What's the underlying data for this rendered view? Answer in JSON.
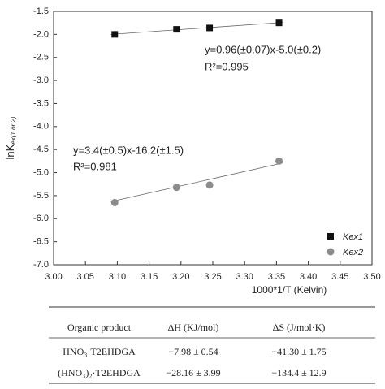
{
  "chart_data": {
    "type": "scatter",
    "x_label": "1000*1/T (Kelvin)",
    "y_label": {
      "main": "lnK",
      "sub": "ex(1 or 2)"
    },
    "xlim": [
      3.0,
      3.5
    ],
    "xticks": [
      {
        "value": 3,
        "label": "3.00"
      },
      3.05,
      {
        "value": 3.1,
        "label": "3.10"
      },
      3.15,
      {
        "value": 3.2,
        "label": "3.20"
      },
      3.25,
      {
        "value": 3.3,
        "label": "3.30"
      },
      3.35,
      {
        "value": 3.4,
        "label": "3.40"
      },
      3.45,
      {
        "value": 3.5,
        "label": "3.50"
      }
    ],
    "ylim": [
      -7.0,
      -1.5
    ],
    "yticks": [
      -1.5,
      {
        "value": -2,
        "label": "-2.0"
      },
      -2.5,
      {
        "value": -3,
        "label": "-3.0"
      },
      -3.5,
      {
        "value": -4,
        "label": "-4.0"
      },
      -4.5,
      {
        "value": -5,
        "label": "-5.0"
      },
      -5.5,
      {
        "value": -6,
        "label": "-6.0"
      },
      -6.5,
      {
        "value": -7,
        "label": "-7.0"
      }
    ],
    "legend": "bottom-right",
    "series": [
      {
        "name": "Kex1",
        "color": "#111111",
        "marker": "square",
        "x": [
          3.096,
          3.193,
          3.245,
          3.354
        ],
        "values": [
          -2.0,
          -1.89,
          -1.86,
          -1.75
        ],
        "fit": {
          "x": [
            3.09,
            3.36
          ],
          "y": [
            -2.0,
            -1.74
          ]
        }
      },
      {
        "name": "Kex2",
        "color": "#8c8c8c",
        "marker": "circle",
        "x": [
          3.096,
          3.193,
          3.245,
          3.354
        ],
        "values": [
          -5.65,
          -5.32,
          -5.27,
          -4.75
        ],
        "fit": {
          "x": [
            3.09,
            3.36
          ],
          "y": [
            -5.63,
            -4.79
          ]
        }
      }
    ],
    "annotations": [
      "y=0.96(±0.07)x-5.0(±0.2)",
      "R²=0.995",
      "y=3.4(±0.5)x-16.2(±1.5)",
      "R²=0.981"
    ]
  },
  "table": {
    "header": [
      "Organic product",
      "ΔH (KJ/mol)",
      "ΔS (J/mol·K)"
    ],
    "rows": [
      [
        "HNO₃·T2EHDGA",
        "−7.98 ± 0.54",
        "−41.30 ± 1.75"
      ],
      [
        "(HNO₃)₂·T2EHDGA",
        "−28.16 ± 3.99",
        "−134.4 ± 12.9"
      ]
    ]
  }
}
